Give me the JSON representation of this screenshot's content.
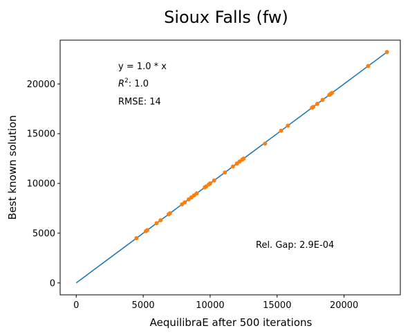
{
  "chart_data": {
    "type": "scatter",
    "title": "Sioux Falls (fw)",
    "xlabel": "AequilibraE after 500 iterations",
    "ylabel": "Best known solution",
    "xlim": [
      -1200,
      24200
    ],
    "ylim": [
      -1200,
      24400
    ],
    "xticks": [
      0,
      5000,
      10000,
      15000,
      20000
    ],
    "yticks": [
      0,
      5000,
      10000,
      15000,
      20000
    ],
    "grid": false,
    "fit_line": {
      "slope": 1.0,
      "x_range": [
        0,
        23200
      ],
      "color": "#1f77b4"
    },
    "annotations": {
      "equation": "y = 1.0 * x",
      "r2_symbol": "R",
      "r2_exp": "2",
      "r2_value": ":  1.0",
      "rmse": "RMSE: 14",
      "rel_gap": "Rel. Gap: 2.9E-04"
    },
    "series": [
      {
        "color": "#ff7f0e",
        "x": [
          4500,
          5200,
          5300,
          6000,
          6300,
          6900,
          7000,
          7900,
          8100,
          8400,
          8600,
          8800,
          9000,
          9600,
          9700,
          9900,
          10000,
          10300,
          11100,
          11700,
          12000,
          12200,
          12400,
          12500,
          14100,
          15300,
          15800,
          17600,
          17700,
          18000,
          18400,
          18900,
          19000,
          19100,
          21800,
          23200
        ],
        "y": [
          4500,
          5200,
          5300,
          6000,
          6300,
          6900,
          7000,
          7900,
          8100,
          8400,
          8600,
          8800,
          9000,
          9600,
          9700,
          9900,
          10000,
          10300,
          11100,
          11700,
          12000,
          12200,
          12400,
          12500,
          14000,
          15300,
          15800,
          17600,
          17700,
          18000,
          18400,
          18900,
          19000,
          19100,
          21800,
          23200
        ]
      }
    ]
  }
}
